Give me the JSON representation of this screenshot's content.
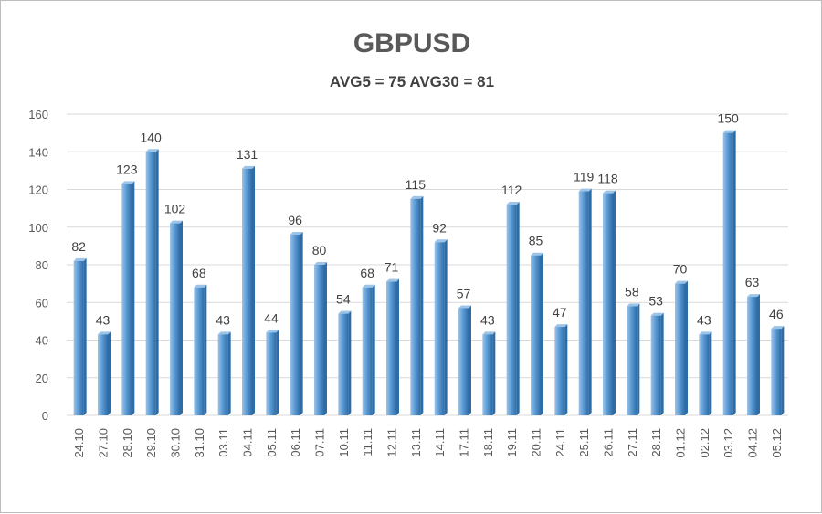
{
  "chart_data": {
    "type": "bar",
    "title": "GBPUSD",
    "subtitle": "AVG5 = 75 AVG30 = 81",
    "xlabel": "",
    "ylabel": "",
    "ylim": [
      0,
      160
    ],
    "yticks": [
      0,
      20,
      40,
      60,
      80,
      100,
      120,
      140,
      160
    ],
    "grid": true,
    "legend": "none",
    "categories": [
      "24.10",
      "27.10",
      "28.10",
      "29.10",
      "30.10",
      "31.10",
      "03.11",
      "04.11",
      "05.11",
      "06.11",
      "07.11",
      "10.11",
      "11.11",
      "12.11",
      "13.11",
      "14.11",
      "17.11",
      "18.11",
      "19.11",
      "20.11",
      "24.11",
      "25.11",
      "26.11",
      "27.11",
      "28.11",
      "01.12",
      "02.12",
      "03.12",
      "04.12",
      "05.12"
    ],
    "values": [
      82,
      43,
      123,
      140,
      102,
      68,
      43,
      131,
      44,
      96,
      80,
      54,
      68,
      71,
      115,
      92,
      57,
      43,
      112,
      85,
      47,
      119,
      118,
      58,
      53,
      70,
      43,
      150,
      63,
      46
    ],
    "colors": {
      "bar": "#5b9bd5",
      "bar_dark": "#2e6ca6",
      "bar_light": "#9cc3e8",
      "grid": "#d9d9d9"
    }
  }
}
